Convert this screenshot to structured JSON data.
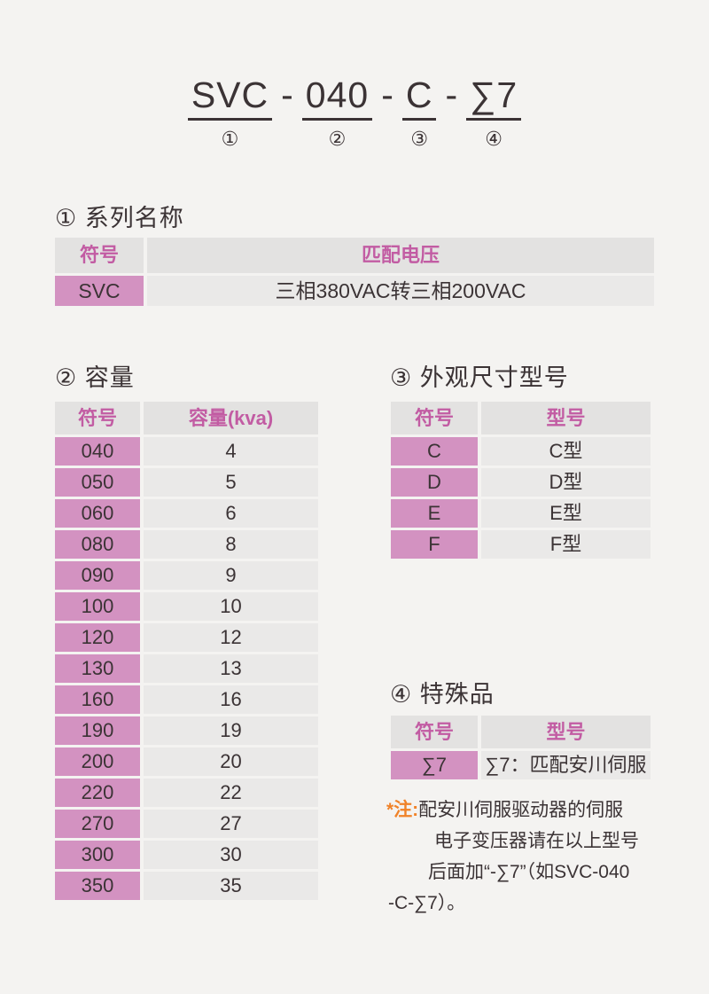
{
  "model_code": {
    "separator": "-",
    "segments": [
      {
        "text": "SVC",
        "number": "①"
      },
      {
        "text": "040",
        "number": "②"
      },
      {
        "text": "C",
        "number": "③"
      },
      {
        "text": "∑7",
        "number": "④"
      }
    ]
  },
  "sections": {
    "series": {
      "heading": "① 系列名称",
      "table": {
        "headers": [
          "符号",
          "匹配电压"
        ],
        "rows": [
          {
            "sym": "SVC",
            "val": "三相380VAC转三相200VAC"
          }
        ]
      }
    },
    "capacity": {
      "heading": "② 容量",
      "table": {
        "headers": [
          "符号",
          "容量(kva)"
        ],
        "rows": [
          {
            "sym": "040",
            "val": "4"
          },
          {
            "sym": "050",
            "val": "5"
          },
          {
            "sym": "060",
            "val": "6"
          },
          {
            "sym": "080",
            "val": "8"
          },
          {
            "sym": "090",
            "val": "9"
          },
          {
            "sym": "100",
            "val": "10"
          },
          {
            "sym": "120",
            "val": "12"
          },
          {
            "sym": "130",
            "val": "13"
          },
          {
            "sym": "160",
            "val": "16"
          },
          {
            "sym": "190",
            "val": "19"
          },
          {
            "sym": "200",
            "val": "20"
          },
          {
            "sym": "220",
            "val": "22"
          },
          {
            "sym": "270",
            "val": "27"
          },
          {
            "sym": "300",
            "val": "30"
          },
          {
            "sym": "350",
            "val": "35"
          }
        ]
      }
    },
    "dimension": {
      "heading": "③ 外观尺寸型号",
      "table": {
        "headers": [
          "符号",
          "型号"
        ],
        "rows": [
          {
            "sym": "C",
            "val": "C型"
          },
          {
            "sym": "D",
            "val": "D型"
          },
          {
            "sym": "E",
            "val": "E型"
          },
          {
            "sym": "F",
            "val": "F型"
          }
        ]
      }
    },
    "special": {
      "heading": "④ 特殊品",
      "table": {
        "headers": [
          "符号",
          "型号"
        ],
        "rows": [
          {
            "sym": "∑7",
            "val": "∑7：匹配安川伺服"
          }
        ]
      }
    }
  },
  "note": {
    "prefix": "*注:",
    "lines": [
      "配安川伺服驱动器的伺服",
      "电子变压器请在以上型号",
      "后面加“-∑7”（如SVC-040",
      "-C-∑7）。"
    ]
  },
  "colors": {
    "page_bg": "#f4f3f1",
    "pink_cell_bg": "#d392c1",
    "pink_header_text": "#c25ca3",
    "header_gray_bg": "#e3e2e1",
    "cell_gray_bg": "#eae9e8",
    "note_orange": "#f08228",
    "text_dark": "#3b3335"
  }
}
